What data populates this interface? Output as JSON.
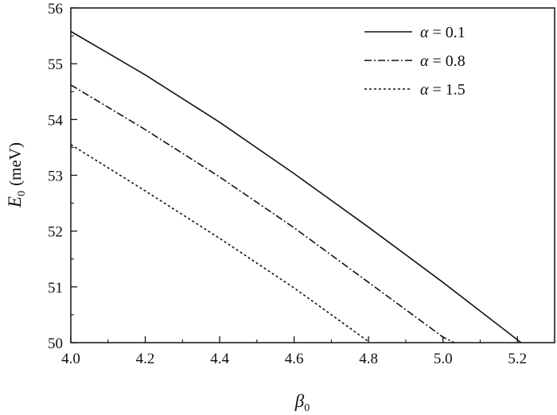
{
  "chart_data": {
    "type": "line",
    "xlabel": {
      "symbol": "β",
      "sub": "0"
    },
    "ylabel": {
      "symbol": "E",
      "sub": "0",
      "unit": "(meV)"
    },
    "xlim": [
      4.0,
      5.3
    ],
    "ylim": [
      50,
      56
    ],
    "xticks": [
      "4.0",
      "4.2",
      "4.4",
      "4.6",
      "4.8",
      "5.0",
      "5.2"
    ],
    "yticks": [
      "50",
      "51",
      "52",
      "53",
      "54",
      "55",
      "56"
    ],
    "grid": false,
    "legend_position": "top-right",
    "series": [
      {
        "name": "α = 0.1",
        "legend_symbol": "α",
        "legend_value": "= 0.1",
        "style": "solid",
        "x": [
          4.0,
          4.2,
          4.4,
          4.6,
          4.8,
          5.0,
          5.21
        ],
        "y": [
          55.58,
          54.8,
          53.95,
          53.03,
          52.07,
          51.08,
          50.0
        ]
      },
      {
        "name": "α = 0.8",
        "legend_symbol": "α",
        "legend_value": "= 0.8",
        "style": "dashdot",
        "x": [
          4.0,
          4.2,
          4.4,
          4.6,
          4.8,
          5.0,
          5.03
        ],
        "y": [
          54.62,
          53.82,
          52.97,
          52.06,
          51.08,
          50.1,
          50.0
        ]
      },
      {
        "name": "α = 1.5",
        "legend_symbol": "α",
        "legend_value": "= 1.5",
        "style": "dotted",
        "x": [
          4.0,
          4.2,
          4.4,
          4.6,
          4.8
        ],
        "y": [
          53.55,
          52.72,
          51.87,
          50.98,
          50.02
        ]
      }
    ]
  }
}
